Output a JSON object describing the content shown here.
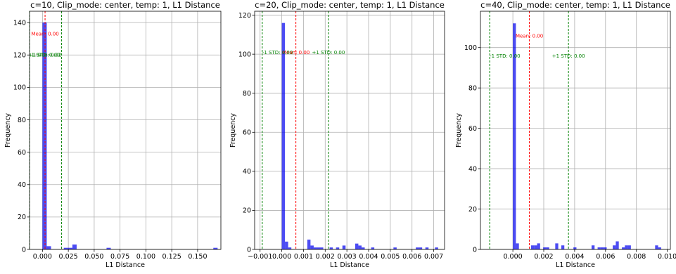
{
  "chart_data": [
    {
      "type": "bar",
      "title": "c=10, Clip_mode: center, temp: 1, L1 Distance",
      "xlabel": "L1 Distance",
      "ylabel": "Frequency",
      "xlim": [
        -0.0125,
        0.1725
      ],
      "ylim": [
        0,
        147
      ],
      "xticks": [
        0.0,
        0.025,
        0.05,
        0.075,
        0.1,
        0.125,
        0.15
      ],
      "xtick_labels": [
        "0.000",
        "0.025",
        "0.050",
        "0.075",
        "0.100",
        "0.125",
        "0.150"
      ],
      "yticks": [
        0,
        20,
        40,
        60,
        80,
        100,
        120,
        140
      ],
      "ytick_labels": [
        "0",
        "20",
        "40",
        "60",
        "80",
        "100",
        "120",
        "140"
      ],
      "bin_width": 0.00413,
      "bar_color": "#0000ee",
      "bar_opacity": 0.7,
      "bins": [
        {
          "x": 0.0,
          "count": 140
        },
        {
          "x": 0.00413,
          "count": 2
        },
        {
          "x": 0.02065,
          "count": 1
        },
        {
          "x": 0.02478,
          "count": 1
        },
        {
          "x": 0.02891,
          "count": 3
        },
        {
          "x": 0.06195,
          "count": 1
        },
        {
          "x": 0.1652,
          "count": 1
        }
      ],
      "grid": true,
      "lines": [
        {
          "x": 0.0025,
          "color": "#ff0000",
          "label": "Mean: 0.00",
          "label_y": 132,
          "align": "middle"
        },
        {
          "x": -0.0125,
          "color": "#008000",
          "label": "-1 STD: 0.00",
          "label_y": 119,
          "align": "start"
        },
        {
          "x": 0.0185,
          "color": "#008000",
          "label": "+1 STD: 0.02",
          "label_y": 119,
          "align": "end"
        }
      ]
    },
    {
      "type": "bar",
      "title": "c=20, Clip_mode: center, temp: 1, L1 Distance",
      "xlabel": "L1 Distance",
      "ylabel": "Frequency",
      "xlim": [
        -0.00125,
        0.0075
      ],
      "ylim": [
        0,
        122
      ],
      "xticks": [
        -0.001,
        0.0,
        0.001,
        0.002,
        0.003,
        0.004,
        0.005,
        0.006,
        0.007
      ],
      "xtick_labels": [
        "−0.001",
        "0.000",
        "0.001",
        "0.002",
        "0.003",
        "0.004",
        "0.005",
        "0.006",
        "0.007"
      ],
      "yticks": [
        0,
        20,
        40,
        60,
        80,
        100,
        120
      ],
      "ytick_labels": [
        "0",
        "20",
        "40",
        "60",
        "80",
        "100",
        "120"
      ],
      "bin_width": 0.000147,
      "bar_color": "#0000ee",
      "bar_opacity": 0.7,
      "bins": [
        {
          "x": 0.0,
          "count": 116
        },
        {
          "x": 0.000147,
          "count": 4
        },
        {
          "x": 0.000294,
          "count": 1
        },
        {
          "x": 0.001176,
          "count": 5
        },
        {
          "x": 0.001323,
          "count": 2
        },
        {
          "x": 0.00147,
          "count": 1
        },
        {
          "x": 0.001617,
          "count": 1
        },
        {
          "x": 0.001764,
          "count": 1
        },
        {
          "x": 0.002205,
          "count": 1
        },
        {
          "x": 0.002499,
          "count": 1
        },
        {
          "x": 0.002793,
          "count": 2
        },
        {
          "x": 0.003381,
          "count": 3
        },
        {
          "x": 0.003528,
          "count": 2
        },
        {
          "x": 0.003675,
          "count": 1
        },
        {
          "x": 0.004116,
          "count": 1
        },
        {
          "x": 0.005145,
          "count": 1
        },
        {
          "x": 0.006174,
          "count": 1
        },
        {
          "x": 0.006321,
          "count": 1
        },
        {
          "x": 0.006615,
          "count": 1
        },
        {
          "x": 0.007056,
          "count": 1
        }
      ],
      "grid": true,
      "lines": [
        {
          "x": 0.00065,
          "color": "#ff0000",
          "label": "Mean: 0.00",
          "label_y": 100,
          "align": "middle"
        },
        {
          "x": -0.0009,
          "color": "#008000",
          "label": "-1 STD: 0.00",
          "label_y": 100,
          "align": "start"
        },
        {
          "x": 0.00215,
          "color": "#008000",
          "label": "+1 STD: 0.00",
          "label_y": 100,
          "align": "middle"
        }
      ]
    },
    {
      "type": "bar",
      "title": "c=40, Clip_mode: center, temp: 1, L1 Distance",
      "xlabel": "L1 Distance",
      "ylabel": "Frequency",
      "xlim": [
        -0.0021,
        0.0102
      ],
      "ylim": [
        0,
        118
      ],
      "xticks": [
        0.0,
        0.002,
        0.004,
        0.006,
        0.008,
        0.01
      ],
      "xtick_labels": [
        "0.000",
        "0.002",
        "0.004",
        "0.006",
        "0.008",
        "0.010"
      ],
      "yticks": [
        0,
        20,
        40,
        60,
        80,
        100
      ],
      "ytick_labels": [
        "0",
        "20",
        "40",
        "60",
        "80",
        "100"
      ],
      "bin_width": 0.000196,
      "bar_color": "#0000ee",
      "bar_opacity": 0.7,
      "bins": [
        {
          "x": 0.0,
          "count": 112
        },
        {
          "x": 0.000196,
          "count": 3
        },
        {
          "x": 0.001176,
          "count": 2
        },
        {
          "x": 0.001372,
          "count": 2
        },
        {
          "x": 0.001568,
          "count": 3
        },
        {
          "x": 0.00196,
          "count": 1
        },
        {
          "x": 0.002156,
          "count": 1
        },
        {
          "x": 0.002744,
          "count": 3
        },
        {
          "x": 0.003136,
          "count": 2
        },
        {
          "x": 0.00392,
          "count": 1
        },
        {
          "x": 0.005096,
          "count": 2
        },
        {
          "x": 0.005488,
          "count": 1
        },
        {
          "x": 0.005684,
          "count": 1
        },
        {
          "x": 0.00588,
          "count": 1
        },
        {
          "x": 0.006468,
          "count": 2
        },
        {
          "x": 0.006664,
          "count": 4
        },
        {
          "x": 0.00706,
          "count": 1
        },
        {
          "x": 0.007252,
          "count": 2
        },
        {
          "x": 0.007448,
          "count": 2
        },
        {
          "x": 0.009212,
          "count": 2
        },
        {
          "x": 0.009408,
          "count": 1
        }
      ],
      "grid": true,
      "lines": [
        {
          "x": 0.00107,
          "color": "#ff0000",
          "label": "Mean: 0.00",
          "label_y": 105,
          "align": "middle"
        },
        {
          "x": -0.0015,
          "color": "#008000",
          "label": "-1 STD: 0.00",
          "label_y": 95,
          "align": "start"
        },
        {
          "x": 0.0036,
          "color": "#008000",
          "label": "+1 STD: 0.00",
          "label_y": 95,
          "align": "middle"
        }
      ]
    }
  ]
}
